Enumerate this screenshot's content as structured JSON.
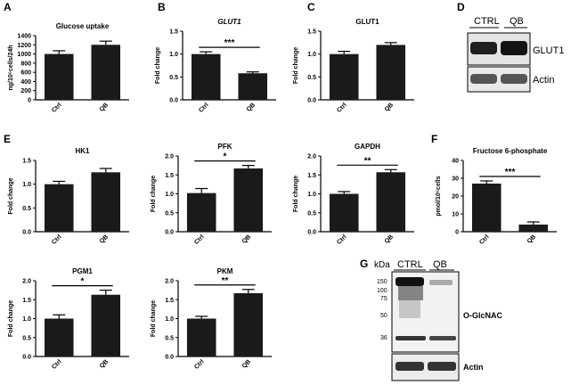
{
  "panel_labels": {
    "A": "A",
    "B": "B",
    "C": "C",
    "D": "D",
    "E": "E",
    "F": "F",
    "G": "G"
  },
  "chart_data": [
    {
      "id": "A",
      "type": "bar",
      "title": "Glucose uptake",
      "title_italic": false,
      "ylabel": "ng/10⁶cells/24h",
      "categories": [
        "Ctrl",
        "QB"
      ],
      "values": [
        1000,
        1200
      ],
      "errors": [
        70,
        80
      ],
      "ylim": [
        0,
        1400
      ],
      "yticks": [
        "0",
        "200",
        "400",
        "600",
        "800",
        "1000",
        "1200",
        "1400"
      ],
      "significance": ""
    },
    {
      "id": "B",
      "type": "bar",
      "title": "GLUT1",
      "title_italic": true,
      "ylabel": "Fold change",
      "categories": [
        "Ctrl",
        "QB"
      ],
      "values": [
        1.0,
        0.58
      ],
      "errors": [
        0.05,
        0.03
      ],
      "ylim": [
        0,
        1.5
      ],
      "yticks": [
        "0.0",
        "0.5",
        "1.0",
        "1.5"
      ],
      "significance": "***"
    },
    {
      "id": "C",
      "type": "bar",
      "title": "GLUT1",
      "title_italic": false,
      "ylabel": "Fold change",
      "categories": [
        "Ctrl",
        "QB"
      ],
      "values": [
        1.0,
        1.2
      ],
      "errors": [
        0.06,
        0.05
      ],
      "ylim": [
        0,
        1.5
      ],
      "yticks": [
        "0.0",
        "0.5",
        "1.0",
        "1.5"
      ],
      "significance": ""
    },
    {
      "id": "E1",
      "type": "bar",
      "title": "HK1",
      "title_italic": false,
      "ylabel": "Fold change",
      "categories": [
        "Ctrl",
        "QB"
      ],
      "values": [
        1.0,
        1.25
      ],
      "errors": [
        0.06,
        0.08
      ],
      "ylim": [
        0,
        1.5
      ],
      "yticks": [
        "0.0",
        "0.5",
        "1.0",
        "1.5"
      ],
      "significance": ""
    },
    {
      "id": "E2",
      "type": "bar",
      "title": "PFK",
      "title_italic": false,
      "ylabel": "Fold change",
      "categories": [
        "Ctrl",
        "QB"
      ],
      "values": [
        1.02,
        1.67
      ],
      "errors": [
        0.12,
        0.08
      ],
      "ylim": [
        0,
        2.0
      ],
      "yticks": [
        "0.0",
        "0.5",
        "1.0",
        "1.5",
        "2.0"
      ],
      "significance": "*"
    },
    {
      "id": "E3",
      "type": "bar",
      "title": "GAPDH",
      "title_italic": false,
      "ylabel": "Fold change",
      "categories": [
        "Ctrl",
        "QB"
      ],
      "values": [
        1.0,
        1.57
      ],
      "errors": [
        0.06,
        0.07
      ],
      "ylim": [
        0,
        2.0
      ],
      "yticks": [
        "0.0",
        "0.5",
        "1.0",
        "1.5",
        "2.0"
      ],
      "significance": "**"
    },
    {
      "id": "F",
      "type": "bar",
      "title": "Fructose 6-phosphate",
      "title_italic": false,
      "ylabel": "pmol/10⁶cells",
      "categories": [
        "Ctrl",
        "QB"
      ],
      "values": [
        27,
        4
      ],
      "errors": [
        1.5,
        1.5
      ],
      "ylim": [
        0,
        40
      ],
      "yticks": [
        "0",
        "10",
        "20",
        "30",
        "40"
      ],
      "significance": "***"
    },
    {
      "id": "E4",
      "type": "bar",
      "title": "PGM1",
      "title_italic": false,
      "ylabel": "Fold change",
      "categories": [
        "Ctrl",
        "QB"
      ],
      "values": [
        1.0,
        1.63
      ],
      "errors": [
        0.1,
        0.12
      ],
      "ylim": [
        0,
        2.0
      ],
      "yticks": [
        "0.0",
        "0.5",
        "1.0",
        "1.5",
        "2.0"
      ],
      "significance": "*"
    },
    {
      "id": "E5",
      "type": "bar",
      "title": "PKM",
      "title_italic": false,
      "ylabel": "Fold change",
      "categories": [
        "Ctrl",
        "QB"
      ],
      "values": [
        1.0,
        1.67
      ],
      "errors": [
        0.06,
        0.1
      ],
      "ylim": [
        0,
        2.0
      ],
      "yticks": [
        "0.0",
        "0.5",
        "1.0",
        "1.5",
        "2.0"
      ],
      "significance": "**"
    }
  ],
  "blot_D": {
    "lanes": [
      "CTRL",
      "QB"
    ],
    "rows": [
      "GLUT1",
      "Actin"
    ]
  },
  "blot_G": {
    "kda_label": "kDa",
    "lanes": [
      "CTRL",
      "QB"
    ],
    "markers": [
      "150",
      "100",
      "75",
      "50",
      "36"
    ],
    "rows": [
      "O-GlcNAC",
      "Actin"
    ]
  },
  "colors": {
    "bar": "#1a1a1a",
    "axis": "#000000",
    "blot_bg": "#e8e8e8",
    "band": "#222222"
  }
}
